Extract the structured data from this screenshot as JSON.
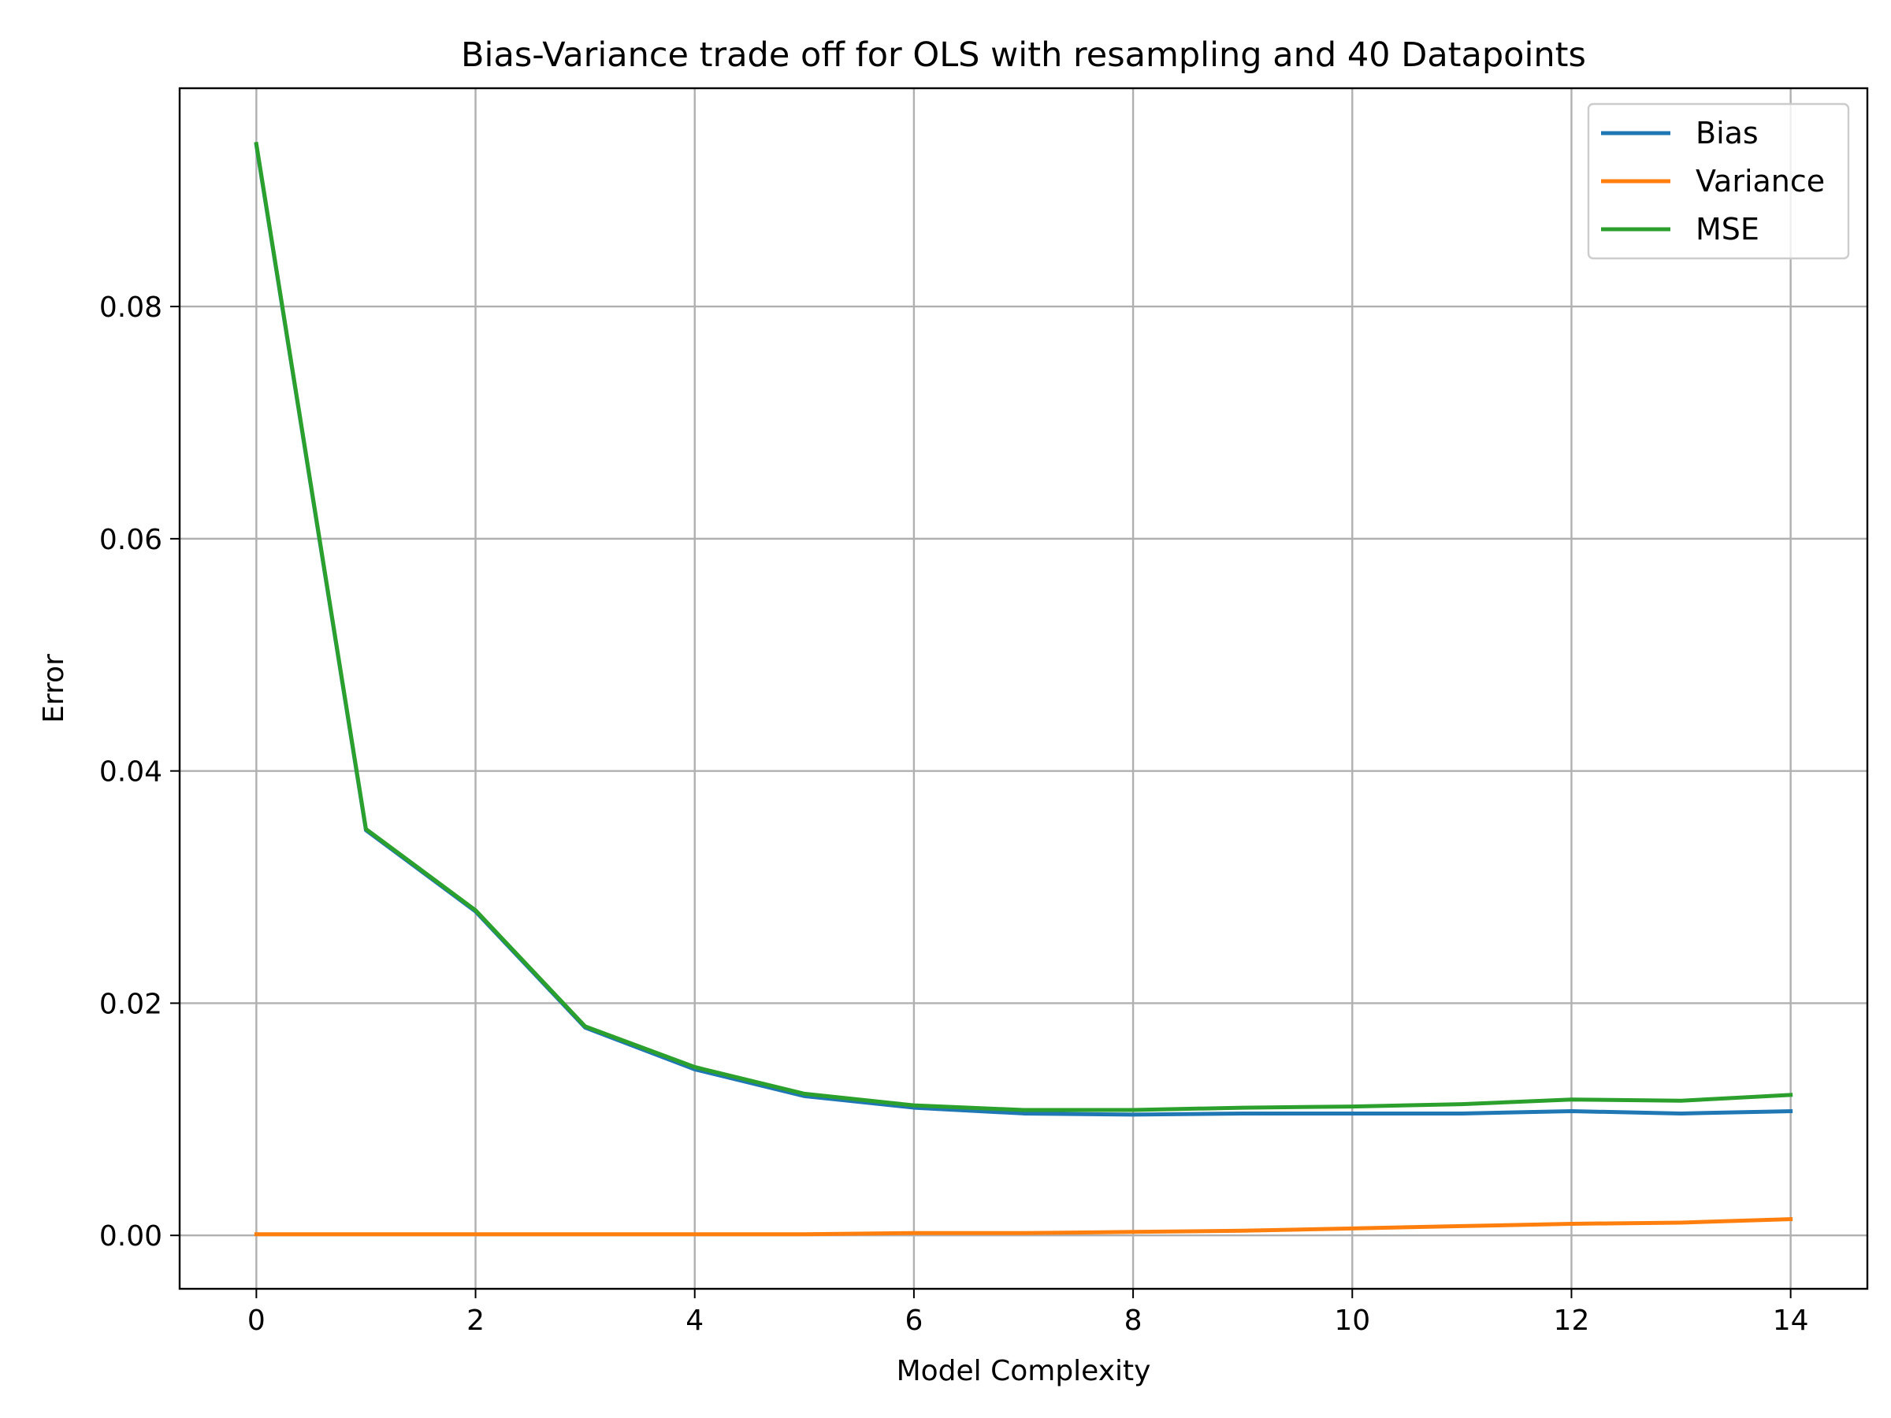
{
  "chart_data": {
    "type": "line",
    "title": "Bias-Variance trade off for OLS with resampling and 40 Datapoints",
    "xlabel": "Model Complexity",
    "ylabel": "Error",
    "x": [
      0,
      1,
      2,
      3,
      4,
      5,
      6,
      7,
      8,
      9,
      10,
      11,
      12,
      13,
      14
    ],
    "xlim": [
      -0.7,
      14.7
    ],
    "ylim": [
      -0.0046,
      0.0988
    ],
    "xticks": [
      0,
      2,
      4,
      6,
      8,
      10,
      12,
      14
    ],
    "yticks": [
      0.0,
      0.02,
      0.04,
      0.06,
      0.08
    ],
    "yticklabels": [
      "0.00",
      "0.02",
      "0.04",
      "0.06",
      "0.08"
    ],
    "xticklabels": [
      "0",
      "2",
      "4",
      "6",
      "8",
      "10",
      "12",
      "14"
    ],
    "grid": true,
    "legend_position": "top-right",
    "series": [
      {
        "name": "Bias",
        "color": "#1f77b4",
        "values": [
          0.0939,
          0.0349,
          0.0279,
          0.0179,
          0.0143,
          0.012,
          0.011,
          0.0105,
          0.0104,
          0.0105,
          0.0105,
          0.0105,
          0.0107,
          0.0105,
          0.0107
        ]
      },
      {
        "name": "Variance",
        "color": "#ff7f0e",
        "values": [
          0.0001,
          0.0001,
          0.0001,
          0.0001,
          0.0001,
          0.0001,
          0.0002,
          0.0002,
          0.0003,
          0.0004,
          0.0006,
          0.0008,
          0.001,
          0.0011,
          0.0014
        ]
      },
      {
        "name": "MSE",
        "color": "#2ca02c",
        "values": [
          0.094,
          0.035,
          0.028,
          0.018,
          0.0145,
          0.0122,
          0.0112,
          0.0108,
          0.0108,
          0.011,
          0.0111,
          0.0113,
          0.0117,
          0.0116,
          0.0121
        ]
      }
    ]
  }
}
